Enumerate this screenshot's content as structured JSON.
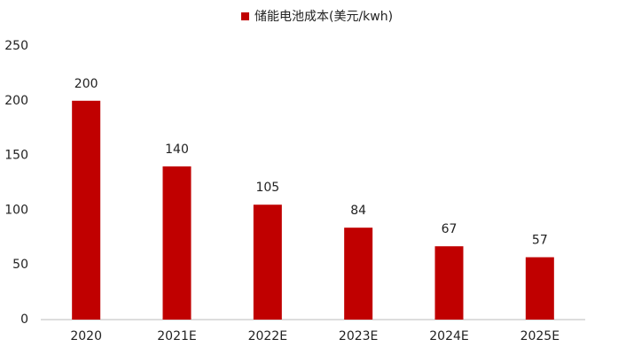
{
  "chart_data": {
    "type": "bar",
    "categories": [
      "2020",
      "2021E",
      "2022E",
      "2023E",
      "2024E",
      "2025E"
    ],
    "series": [
      {
        "name": "储能电池成本(美元/kwh)",
        "color": "#c00000",
        "values": [
          200,
          140,
          105,
          84,
          67,
          57
        ]
      }
    ],
    "ylim": [
      0,
      250
    ],
    "yticks": [
      0,
      50,
      100,
      150,
      200,
      250
    ],
    "grid": false,
    "legend": "top"
  }
}
